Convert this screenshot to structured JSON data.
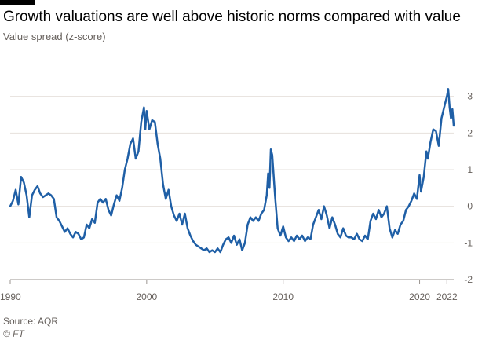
{
  "header": {
    "title": "Growth valuations are well above historic norms compared with value",
    "subtitle": "Value spread (z-score)"
  },
  "footer": {
    "source": "Source: AQR",
    "credit": "© FT"
  },
  "colors": {
    "line": "#1f5fa6",
    "grid": "#e6e1dc",
    "axis": "#9b9591",
    "text": "#66605c"
  },
  "chart_data": {
    "type": "line",
    "title": "Growth valuations are well above historic norms compared with value",
    "ylabel": "Value spread (z-score)",
    "xlim": [
      1990,
      2022.5
    ],
    "ylim": [
      -2,
      3.4
    ],
    "y_ticks": [
      3,
      2,
      1,
      0,
      -1,
      -2
    ],
    "x_ticks": [
      1990,
      2000,
      2010,
      2020,
      2022
    ],
    "grid": true,
    "series": [
      {
        "values": [
          [
            1990.0,
            0.0
          ],
          [
            1990.2,
            0.15
          ],
          [
            1990.4,
            0.45
          ],
          [
            1990.6,
            0.05
          ],
          [
            1990.8,
            0.8
          ],
          [
            1991.0,
            0.65
          ],
          [
            1991.2,
            0.3
          ],
          [
            1991.4,
            -0.3
          ],
          [
            1991.6,
            0.3
          ],
          [
            1991.8,
            0.45
          ],
          [
            1992.0,
            0.55
          ],
          [
            1992.2,
            0.35
          ],
          [
            1992.4,
            0.25
          ],
          [
            1992.6,
            0.3
          ],
          [
            1992.8,
            0.35
          ],
          [
            1993.0,
            0.3
          ],
          [
            1993.2,
            0.2
          ],
          [
            1993.4,
            -0.3
          ],
          [
            1993.6,
            -0.4
          ],
          [
            1993.8,
            -0.55
          ],
          [
            1994.0,
            -0.7
          ],
          [
            1994.2,
            -0.6
          ],
          [
            1994.4,
            -0.75
          ],
          [
            1994.6,
            -0.85
          ],
          [
            1994.8,
            -0.7
          ],
          [
            1995.0,
            -0.75
          ],
          [
            1995.2,
            -0.9
          ],
          [
            1995.4,
            -0.85
          ],
          [
            1995.6,
            -0.5
          ],
          [
            1995.8,
            -0.6
          ],
          [
            1996.0,
            -0.35
          ],
          [
            1996.2,
            -0.45
          ],
          [
            1996.4,
            0.1
          ],
          [
            1996.6,
            0.2
          ],
          [
            1996.8,
            0.1
          ],
          [
            1997.0,
            0.2
          ],
          [
            1997.2,
            -0.1
          ],
          [
            1997.4,
            -0.25
          ],
          [
            1997.6,
            0.05
          ],
          [
            1997.8,
            0.3
          ],
          [
            1998.0,
            0.15
          ],
          [
            1998.2,
            0.5
          ],
          [
            1998.4,
            1.0
          ],
          [
            1998.6,
            1.3
          ],
          [
            1998.8,
            1.7
          ],
          [
            1999.0,
            1.85
          ],
          [
            1999.2,
            1.3
          ],
          [
            1999.4,
            1.5
          ],
          [
            1999.6,
            2.3
          ],
          [
            1999.8,
            2.7
          ],
          [
            1999.9,
            2.1
          ],
          [
            2000.0,
            2.6
          ],
          [
            2000.2,
            2.1
          ],
          [
            2000.4,
            2.35
          ],
          [
            2000.6,
            2.3
          ],
          [
            2000.8,
            1.7
          ],
          [
            2001.0,
            1.3
          ],
          [
            2001.2,
            0.6
          ],
          [
            2001.4,
            0.2
          ],
          [
            2001.6,
            0.45
          ],
          [
            2001.8,
            0.0
          ],
          [
            2002.0,
            -0.25
          ],
          [
            2002.2,
            -0.4
          ],
          [
            2002.4,
            -0.2
          ],
          [
            2002.6,
            -0.5
          ],
          [
            2002.8,
            -0.2
          ],
          [
            2003.0,
            -0.6
          ],
          [
            2003.2,
            -0.8
          ],
          [
            2003.4,
            -0.95
          ],
          [
            2003.6,
            -1.05
          ],
          [
            2003.8,
            -1.1
          ],
          [
            2004.0,
            -1.15
          ],
          [
            2004.2,
            -1.2
          ],
          [
            2004.4,
            -1.15
          ],
          [
            2004.6,
            -1.25
          ],
          [
            2004.8,
            -1.2
          ],
          [
            2005.0,
            -1.25
          ],
          [
            2005.2,
            -1.15
          ],
          [
            2005.4,
            -1.25
          ],
          [
            2005.6,
            -1.05
          ],
          [
            2005.8,
            -0.9
          ],
          [
            2006.0,
            -0.85
          ],
          [
            2006.2,
            -1.0
          ],
          [
            2006.4,
            -0.8
          ],
          [
            2006.6,
            -1.05
          ],
          [
            2006.8,
            -0.9
          ],
          [
            2007.0,
            -1.2
          ],
          [
            2007.2,
            -1.0
          ],
          [
            2007.4,
            -0.5
          ],
          [
            2007.6,
            -0.3
          ],
          [
            2007.8,
            -0.4
          ],
          [
            2008.0,
            -0.3
          ],
          [
            2008.2,
            -0.4
          ],
          [
            2008.4,
            -0.2
          ],
          [
            2008.6,
            -0.1
          ],
          [
            2008.8,
            0.3
          ],
          [
            2008.9,
            0.9
          ],
          [
            2009.0,
            0.5
          ],
          [
            2009.1,
            1.55
          ],
          [
            2009.2,
            1.4
          ],
          [
            2009.4,
            0.3
          ],
          [
            2009.6,
            -0.6
          ],
          [
            2009.8,
            -0.8
          ],
          [
            2010.0,
            -0.55
          ],
          [
            2010.2,
            -0.85
          ],
          [
            2010.4,
            -0.95
          ],
          [
            2010.6,
            -0.85
          ],
          [
            2010.8,
            -0.95
          ],
          [
            2011.0,
            -0.8
          ],
          [
            2011.2,
            -0.9
          ],
          [
            2011.4,
            -0.8
          ],
          [
            2011.6,
            -0.95
          ],
          [
            2011.8,
            -0.85
          ],
          [
            2012.0,
            -0.9
          ],
          [
            2012.2,
            -0.5
          ],
          [
            2012.4,
            -0.3
          ],
          [
            2012.6,
            -0.1
          ],
          [
            2012.8,
            -0.35
          ],
          [
            2013.0,
            0.0
          ],
          [
            2013.2,
            -0.25
          ],
          [
            2013.4,
            -0.6
          ],
          [
            2013.6,
            -0.3
          ],
          [
            2013.8,
            -0.5
          ],
          [
            2014.0,
            -0.75
          ],
          [
            2014.2,
            -0.85
          ],
          [
            2014.4,
            -0.6
          ],
          [
            2014.6,
            -0.8
          ],
          [
            2014.8,
            -0.85
          ],
          [
            2015.0,
            -0.85
          ],
          [
            2015.2,
            -0.9
          ],
          [
            2015.4,
            -0.75
          ],
          [
            2015.6,
            -0.9
          ],
          [
            2015.8,
            -0.95
          ],
          [
            2016.0,
            -0.8
          ],
          [
            2016.2,
            -0.9
          ],
          [
            2016.4,
            -0.4
          ],
          [
            2016.6,
            -0.2
          ],
          [
            2016.8,
            -0.35
          ],
          [
            2017.0,
            -0.1
          ],
          [
            2017.2,
            -0.3
          ],
          [
            2017.4,
            -0.2
          ],
          [
            2017.6,
            0.0
          ],
          [
            2017.8,
            -0.6
          ],
          [
            2018.0,
            -0.85
          ],
          [
            2018.2,
            -0.65
          ],
          [
            2018.4,
            -0.75
          ],
          [
            2018.6,
            -0.5
          ],
          [
            2018.8,
            -0.4
          ],
          [
            2019.0,
            -0.1
          ],
          [
            2019.2,
            0.0
          ],
          [
            2019.4,
            0.15
          ],
          [
            2019.6,
            0.35
          ],
          [
            2019.8,
            0.2
          ],
          [
            2020.0,
            0.85
          ],
          [
            2020.1,
            0.4
          ],
          [
            2020.3,
            0.8
          ],
          [
            2020.5,
            1.5
          ],
          [
            2020.6,
            1.3
          ],
          [
            2020.8,
            1.75
          ],
          [
            2021.0,
            2.1
          ],
          [
            2021.2,
            2.05
          ],
          [
            2021.4,
            1.65
          ],
          [
            2021.6,
            2.4
          ],
          [
            2021.8,
            2.7
          ],
          [
            2022.0,
            3.0
          ],
          [
            2022.1,
            3.2
          ],
          [
            2022.2,
            2.7
          ],
          [
            2022.3,
            2.4
          ],
          [
            2022.4,
            2.65
          ],
          [
            2022.5,
            2.2
          ]
        ]
      }
    ]
  }
}
